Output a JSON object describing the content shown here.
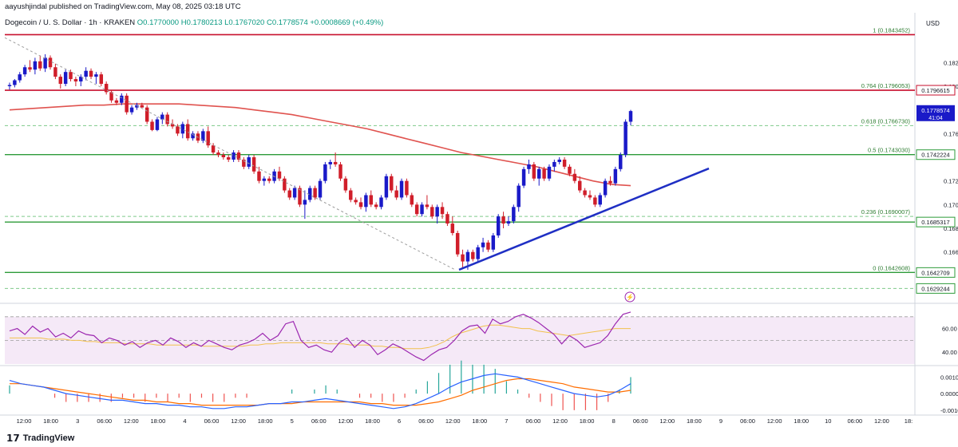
{
  "header": {
    "published": "aayushjindal published on TradingView.com, May 08, 2025 03:18 UTC",
    "symbol": "Dogecoin / U. S. Dollar · 1h · KRAKEN",
    "ohlc": "O0.1770000 H0.1780213 L0.1767020 C0.1778574 +0.0008669 (+0.49%)"
  },
  "footer": {
    "brand": "TradingView"
  },
  "colors": {
    "up": "#1a1ac8",
    "down": "#d01e2a",
    "ma": "#e0534f",
    "trend": "#1f2fc4",
    "green_level": "#2e9b3a",
    "red_level": "#c8102e",
    "fib": "#4caf50",
    "rsi": "#9c27b0",
    "rsi_ma": "#f2c14e",
    "macd": "#2962ff",
    "signal": "#ff6d00",
    "price_tag": "#1a1ac8"
  },
  "chart_data": [
    {
      "type": "candlestick",
      "title": "Dogecoin / U. S. Dollar · 1h · KRAKEN",
      "ylabel": "USD",
      "ylim": [
        0.1618,
        0.1862
      ],
      "yticks": [
        "0.1820000",
        "0.1800000",
        "0.1760000",
        "0.1720000",
        "0.1700000",
        "0.1680000",
        "0.1660000"
      ],
      "xticks": [
        "12:00",
        "18:00",
        "3",
        "06:00",
        "12:00",
        "18:00",
        "4",
        "06:00",
        "12:00",
        "18:00",
        "5",
        "06:00",
        "12:00",
        "18:00",
        "6",
        "06:00",
        "12:00",
        "18:00",
        "7",
        "06:00",
        "12:00",
        "18:00",
        "8",
        "06:00",
        "12:00",
        "18:00",
        "9",
        "06:00",
        "12:00",
        "18:00",
        "10",
        "06:00",
        "12:00",
        "18:"
      ],
      "candles": [
        [
          0.18,
          0.1803,
          0.1797,
          0.1801
        ],
        [
          0.1801,
          0.1806,
          0.1799,
          0.1805
        ],
        [
          0.1805,
          0.1812,
          0.1803,
          0.181
        ],
        [
          0.181,
          0.1818,
          0.1808,
          0.1816
        ],
        [
          0.1816,
          0.1822,
          0.1812,
          0.1814
        ],
        [
          0.1814,
          0.1824,
          0.181,
          0.1821
        ],
        [
          0.1821,
          0.1826,
          0.1813,
          0.1815
        ],
        [
          0.1815,
          0.1827,
          0.1812,
          0.1824
        ],
        [
          0.1824,
          0.1826,
          0.1814,
          0.1816
        ],
        [
          0.1816,
          0.1819,
          0.1806,
          0.1808
        ],
        [
          0.1808,
          0.181,
          0.1798,
          0.1802
        ],
        [
          0.1802,
          0.1814,
          0.18,
          0.1812
        ],
        [
          0.1812,
          0.1814,
          0.1804,
          0.1806
        ],
        [
          0.1806,
          0.1808,
          0.18,
          0.1804
        ],
        [
          0.1804,
          0.181,
          0.18,
          0.1808
        ],
        [
          0.1808,
          0.1816,
          0.1805,
          0.1813
        ],
        [
          0.1813,
          0.1815,
          0.1806,
          0.1808
        ],
        [
          0.1808,
          0.1812,
          0.1802,
          0.181
        ],
        [
          0.181,
          0.1812,
          0.18,
          0.1802
        ],
        [
          0.1802,
          0.1804,
          0.1793,
          0.1795
        ],
        [
          0.1795,
          0.1797,
          0.1786,
          0.1788
        ],
        [
          0.1788,
          0.179,
          0.1784,
          0.1786
        ],
        [
          0.1786,
          0.1794,
          0.1784,
          0.1792
        ],
        [
          0.1792,
          0.1794,
          0.1776,
          0.1778
        ],
        [
          0.1778,
          0.1784,
          0.1776,
          0.1782
        ],
        [
          0.1782,
          0.1786,
          0.178,
          0.1784
        ],
        [
          0.1784,
          0.1786,
          0.1782,
          0.1782
        ],
        [
          0.1782,
          0.1784,
          0.1768,
          0.177
        ],
        [
          0.177,
          0.1772,
          0.1762,
          0.1763
        ],
        [
          0.1763,
          0.1774,
          0.1762,
          0.1772
        ],
        [
          0.1772,
          0.1778,
          0.1768,
          0.1776
        ],
        [
          0.1776,
          0.1778,
          0.1766,
          0.1768
        ],
        [
          0.1768,
          0.1772,
          0.1764,
          0.1766
        ],
        [
          0.1766,
          0.1768,
          0.1758,
          0.176
        ],
        [
          0.176,
          0.177,
          0.1756,
          0.1768
        ],
        [
          0.1768,
          0.1772,
          0.1754,
          0.1756
        ],
        [
          0.1756,
          0.1762,
          0.1754,
          0.176
        ],
        [
          0.176,
          0.1762,
          0.1752,
          0.1754
        ],
        [
          0.1754,
          0.1764,
          0.1752,
          0.1762
        ],
        [
          0.1762,
          0.1766,
          0.1748,
          0.175
        ],
        [
          0.175,
          0.1752,
          0.1742,
          0.1744
        ],
        [
          0.1744,
          0.1746,
          0.174,
          0.1742
        ],
        [
          0.1742,
          0.1744,
          0.1738,
          0.174
        ],
        [
          0.174,
          0.1742,
          0.1736,
          0.1738
        ],
        [
          0.1738,
          0.1746,
          0.1736,
          0.1744
        ],
        [
          0.1744,
          0.1746,
          0.1736,
          0.1738
        ],
        [
          0.1738,
          0.174,
          0.173,
          0.1732
        ],
        [
          0.1732,
          0.1742,
          0.173,
          0.174
        ],
        [
          0.174,
          0.1742,
          0.1726,
          0.1728
        ],
        [
          0.1728,
          0.1732,
          0.1718,
          0.172
        ],
        [
          0.172,
          0.1724,
          0.1716,
          0.1722
        ],
        [
          0.1722,
          0.1724,
          0.1718,
          0.172
        ],
        [
          0.172,
          0.173,
          0.1718,
          0.1728
        ],
        [
          0.1728,
          0.1732,
          0.172,
          0.1722
        ],
        [
          0.1722,
          0.1724,
          0.171,
          0.1712
        ],
        [
          0.1712,
          0.1714,
          0.1704,
          0.1706
        ],
        [
          0.1706,
          0.1716,
          0.1704,
          0.1714
        ],
        [
          0.1714,
          0.1716,
          0.1698,
          0.17
        ],
        [
          0.17,
          0.1712,
          0.1688,
          0.1704
        ],
        [
          0.1704,
          0.1716,
          0.1702,
          0.1714
        ],
        [
          0.1714,
          0.1716,
          0.1704,
          0.1706
        ],
        [
          0.1706,
          0.1722,
          0.1704,
          0.172
        ],
        [
          0.172,
          0.1736,
          0.1718,
          0.1734
        ],
        [
          0.1734,
          0.1738,
          0.173,
          0.1736
        ],
        [
          0.1736,
          0.1744,
          0.1732,
          0.1734
        ],
        [
          0.1734,
          0.1736,
          0.172,
          0.1722
        ],
        [
          0.1722,
          0.1724,
          0.171,
          0.1712
        ],
        [
          0.1712,
          0.1714,
          0.1702,
          0.1704
        ],
        [
          0.1704,
          0.1706,
          0.17,
          0.1702
        ],
        [
          0.1702,
          0.1706,
          0.1696,
          0.1698
        ],
        [
          0.1698,
          0.171,
          0.1694,
          0.1708
        ],
        [
          0.1708,
          0.1712,
          0.1698,
          0.17
        ],
        [
          0.17,
          0.1702,
          0.1696,
          0.1698
        ],
        [
          0.1698,
          0.1708,
          0.1696,
          0.1706
        ],
        [
          0.1706,
          0.1726,
          0.1704,
          0.1724
        ],
        [
          0.1724,
          0.1726,
          0.171,
          0.1712
        ],
        [
          0.1712,
          0.1716,
          0.1704,
          0.1706
        ],
        [
          0.1706,
          0.1722,
          0.1704,
          0.172
        ],
        [
          0.172,
          0.1722,
          0.1706,
          0.1708
        ],
        [
          0.1708,
          0.171,
          0.1698,
          0.17
        ],
        [
          0.17,
          0.1702,
          0.169,
          0.1692
        ],
        [
          0.1692,
          0.1702,
          0.169,
          0.17
        ],
        [
          0.17,
          0.1708,
          0.1696,
          0.1698
        ],
        [
          0.1698,
          0.17,
          0.1688,
          0.169
        ],
        [
          0.169,
          0.17,
          0.1684,
          0.1698
        ],
        [
          0.1698,
          0.1702,
          0.1688,
          0.1692
        ],
        [
          0.1692,
          0.1694,
          0.1682,
          0.1684
        ],
        [
          0.1684,
          0.169,
          0.1674,
          0.1676
        ],
        [
          0.1676,
          0.1678,
          0.1656,
          0.1658
        ],
        [
          0.1658,
          0.1662,
          0.1646,
          0.1652
        ],
        [
          0.1652,
          0.1662,
          0.1645,
          0.166
        ],
        [
          0.166,
          0.1662,
          0.1652,
          0.1654
        ],
        [
          0.1654,
          0.1666,
          0.1652,
          0.1664
        ],
        [
          0.1664,
          0.1672,
          0.166,
          0.1668
        ],
        [
          0.1668,
          0.167,
          0.166,
          0.1662
        ],
        [
          0.1662,
          0.1676,
          0.166,
          0.1674
        ],
        [
          0.1674,
          0.1692,
          0.1672,
          0.169
        ],
        [
          0.169,
          0.1694,
          0.168,
          0.1684
        ],
        [
          0.1684,
          0.169,
          0.1682,
          0.1686
        ],
        [
          0.1686,
          0.17,
          0.1684,
          0.1698
        ],
        [
          0.1698,
          0.1718,
          0.1694,
          0.1716
        ],
        [
          0.1716,
          0.1732,
          0.1714,
          0.173
        ],
        [
          0.173,
          0.1738,
          0.1726,
          0.1734
        ],
        [
          0.1734,
          0.1736,
          0.172,
          0.1722
        ],
        [
          0.1722,
          0.1732,
          0.1716,
          0.173
        ],
        [
          0.173,
          0.1732,
          0.172,
          0.1722
        ],
        [
          0.1722,
          0.1734,
          0.172,
          0.1732
        ],
        [
          0.1732,
          0.1738,
          0.1728,
          0.1736
        ],
        [
          0.1736,
          0.174,
          0.1734,
          0.1738
        ],
        [
          0.1738,
          0.174,
          0.173,
          0.1732
        ],
        [
          0.1732,
          0.1734,
          0.1724,
          0.1726
        ],
        [
          0.1726,
          0.173,
          0.1718,
          0.172
        ],
        [
          0.172,
          0.1724,
          0.171,
          0.1712
        ],
        [
          0.1712,
          0.1714,
          0.1706,
          0.1708
        ],
        [
          0.1708,
          0.1712,
          0.1704,
          0.1706
        ],
        [
          0.1706,
          0.1708,
          0.1698,
          0.17
        ],
        [
          0.17,
          0.171,
          0.1698,
          0.1708
        ],
        [
          0.1708,
          0.1722,
          0.1706,
          0.172
        ],
        [
          0.172,
          0.1724,
          0.1716,
          0.1718
        ],
        [
          0.1718,
          0.1732,
          0.1716,
          0.173
        ],
        [
          0.173,
          0.1744,
          0.1728,
          0.1742
        ],
        [
          0.1742,
          0.1772,
          0.174,
          0.177
        ],
        [
          0.177,
          0.178,
          0.1767,
          0.1779
        ]
      ],
      "ma_series": [
        0.178,
        0.1781,
        0.1782,
        0.1783,
        0.1784,
        0.1784,
        0.1785,
        0.1785,
        0.1785,
        0.1785,
        0.1784,
        0.1783,
        0.1782,
        0.178,
        0.1778,
        0.1776,
        0.1773,
        0.177,
        0.1767,
        0.1764,
        0.176,
        0.1756,
        0.1752,
        0.1748,
        0.1744,
        0.1741,
        0.1738,
        0.1735,
        0.1732,
        0.1728,
        0.1724,
        0.172,
        0.1717,
        0.1716
      ],
      "price_levels": [
        {
          "label": "0.1843452",
          "fib": "1 (0.1843452)",
          "value": 0.18435,
          "color": "red"
        },
        {
          "label": "0.1796615",
          "fib": "0.764 (0.1796053)",
          "value": 0.17966,
          "color": "red",
          "tag": "0.1796615"
        },
        {
          "label": "0.1766730",
          "fib": "0.618 (0.1766730)",
          "value": 0.17667
        },
        {
          "label": "0.1742224",
          "fib": "0.5 (0.1743030)",
          "value": 0.17422,
          "color": "green",
          "tag": "0.1742224"
        },
        {
          "label": "0.1690007",
          "fib": "0.236 (0.1690007)",
          "value": 0.169
        },
        {
          "label": "0.1685317",
          "value": 0.16853,
          "color": "green",
          "tag": "0.1685317"
        },
        {
          "label": "0.1642608",
          "fib": "0 (0.1642608)",
          "value": 0.16426
        },
        {
          "label": "0.1642709",
          "value": 0.16427,
          "color": "green",
          "tag": "0.1642709"
        },
        {
          "label": "0.1629244",
          "value": 0.16292,
          "tag": "0.1629244"
        }
      ],
      "last_price": {
        "value": "0.1778574",
        "countdown": "41:04"
      },
      "tags": [
        "0.1796615",
        "0.1742224",
        "0.1685317",
        "0.1642709",
        "0.1629244"
      ],
      "fib_labels": [
        "1 (0.1843452)",
        "0.764 (0.1796053)",
        "0.618 (0.1766730)",
        "0.5 (0.1743030)",
        "0.236 (0.1690007)",
        "0 (0.1642608)"
      ],
      "trendline": {
        "from": [
          0.1645
        ],
        "to": [
          0.1732
        ]
      }
    },
    {
      "type": "line",
      "name": "RSI",
      "ylim": [
        30,
        80
      ],
      "yticks": [
        "60.00",
        "40.00"
      ],
      "band": [
        30,
        70
      ],
      "rsi": [
        58,
        60,
        55,
        62,
        57,
        60,
        53,
        56,
        52,
        58,
        55,
        54,
        48,
        52,
        50,
        46,
        49,
        44,
        48,
        50,
        46,
        52,
        49,
        44,
        48,
        45,
        50,
        47,
        44,
        42,
        46,
        48,
        51,
        56,
        50,
        54,
        64,
        66,
        50,
        44,
        46,
        42,
        40,
        48,
        52,
        44,
        50,
        46,
        38,
        42,
        47,
        44,
        40,
        36,
        33,
        38,
        42,
        44,
        50,
        58,
        62,
        63,
        56,
        68,
        64,
        66,
        70,
        72,
        69,
        65,
        60,
        55,
        47,
        54,
        50,
        44,
        46,
        48,
        54,
        64,
        72,
        74
      ],
      "rsi_ma": [
        52,
        52,
        52,
        52,
        52,
        51,
        51,
        51,
        50,
        50,
        49,
        49,
        48,
        48,
        48,
        47,
        47,
        47,
        47,
        46,
        46,
        46,
        46,
        46,
        46,
        45,
        45,
        45,
        45,
        45,
        45,
        46,
        46,
        47,
        47,
        48,
        48,
        48,
        48,
        48,
        48,
        47,
        47,
        47,
        46,
        46,
        46,
        45,
        45,
        44,
        44,
        43,
        43,
        43,
        44,
        46,
        49,
        53,
        56,
        58,
        60,
        62,
        63,
        63,
        62,
        61,
        60,
        60,
        58,
        57,
        56,
        55,
        54,
        55,
        56,
        57,
        58,
        59,
        60,
        60,
        60
      ]
    },
    {
      "type": "line",
      "name": "MACD",
      "ylim": [
        -0.0012,
        0.0016
      ],
      "yticks": [
        "0.0010000",
        "0.0000000",
        "-0.0010000"
      ],
      "macd": [
        0.0008,
        0.0006,
        0.0005,
        0.0004,
        0.0002,
        0.0,
        -0.0001,
        -0.0002,
        -0.0003,
        -0.0004,
        -0.0004,
        -0.0005,
        -0.0006,
        -0.0006,
        -0.0007,
        -0.0007,
        -0.0008,
        -0.0008,
        -0.0009,
        -0.0009,
        -0.0008,
        -0.0008,
        -0.0007,
        -0.0006,
        -0.0006,
        -0.0005,
        -0.0005,
        -0.0004,
        -0.0003,
        -0.0004,
        -0.0005,
        -0.0006,
        -0.0007,
        -0.0008,
        -0.0009,
        -0.0008,
        -0.0006,
        -0.0003,
        0.0,
        0.0004,
        0.0007,
        0.0009,
        0.0011,
        0.0012,
        0.0011,
        0.001,
        0.0008,
        0.0006,
        0.0004,
        0.0002,
        0.0,
        -0.0001,
        -0.0002,
        -0.0001,
        0.0002,
        0.0006
      ],
      "signal": [
        0.0006,
        0.0006,
        0.0005,
        0.0004,
        0.0003,
        0.0002,
        0.0001,
        0.0,
        -0.0001,
        -0.0002,
        -0.0003,
        -0.0004,
        -0.0004,
        -0.0005,
        -0.0005,
        -0.0006,
        -0.0006,
        -0.0007,
        -0.0007,
        -0.0007,
        -0.0007,
        -0.0007,
        -0.0007,
        -0.0006,
        -0.0006,
        -0.0006,
        -0.0005,
        -0.0005,
        -0.0005,
        -0.0005,
        -0.0005,
        -0.0005,
        -0.0006,
        -0.0006,
        -0.0007,
        -0.0007,
        -0.0007,
        -0.0006,
        -0.0005,
        -0.0003,
        -0.0001,
        0.0002,
        0.0004,
        0.0006,
        0.0008,
        0.0009,
        0.0009,
        0.0008,
        0.0007,
        0.0006,
        0.0004,
        0.0003,
        0.0002,
        0.0001,
        0.0001,
        0.0002
      ]
    }
  ]
}
